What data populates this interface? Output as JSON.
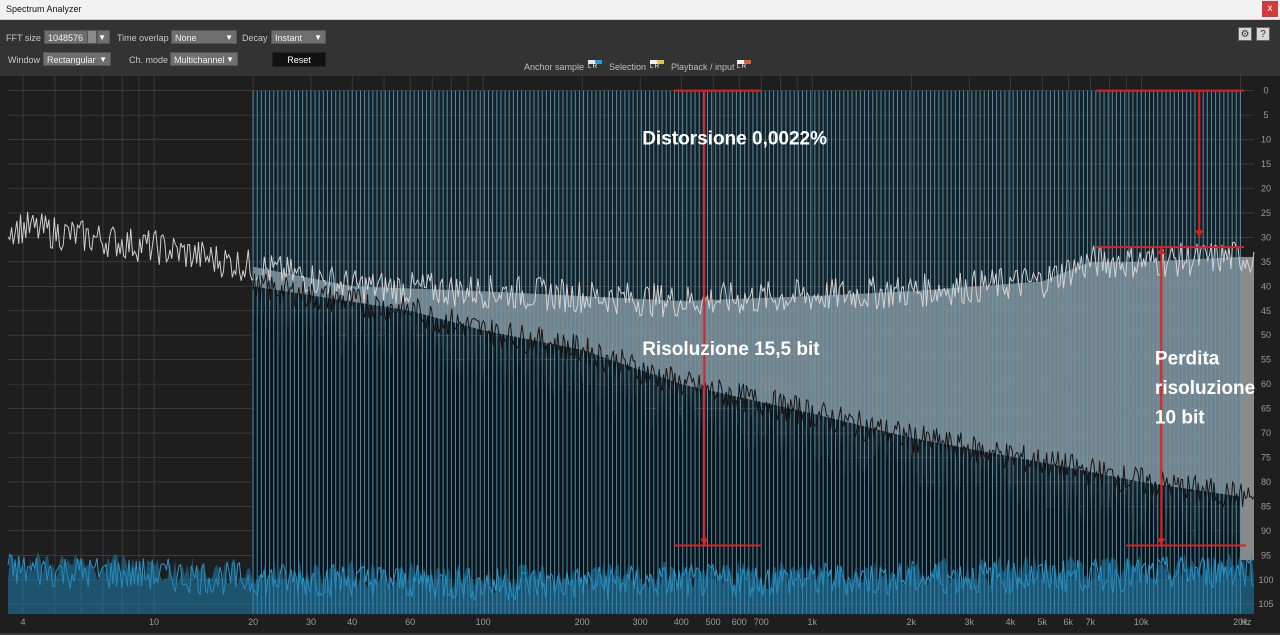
{
  "window": {
    "title": "Spectrum Analyzer",
    "close": "x"
  },
  "toolbar": {
    "fft_size_label": "FFT size",
    "fft_size_value": "1048576",
    "time_overlap_label": "Time overlap",
    "time_overlap_value": "None",
    "decay_label": "Decay",
    "decay_value": "Instant",
    "window_label": "Window",
    "window_value": "Rectangular",
    "ch_mode_label": "Ch. mode",
    "ch_mode_value": "Multichannel",
    "reset_label": "Reset",
    "legend_anchor": "Anchor sample",
    "legend_selection": "Selection",
    "legend_playback": "Playback / input",
    "help_label": "?"
  },
  "chart_data": {
    "type": "line",
    "x_scale": "log",
    "x_unit": "Hz",
    "y_unit": "dB",
    "xlim": [
      3.6,
      22000
    ],
    "ylim": [
      -107,
      3
    ],
    "x_ticks": [
      {
        "value": 4,
        "label": "4"
      },
      {
        "value": 10,
        "label": "10"
      },
      {
        "value": 20,
        "label": "20"
      },
      {
        "value": 30,
        "label": "30"
      },
      {
        "value": 40,
        "label": "40"
      },
      {
        "value": 60,
        "label": "60"
      },
      {
        "value": 100,
        "label": "100"
      },
      {
        "value": 200,
        "label": "200"
      },
      {
        "value": 300,
        "label": "300"
      },
      {
        "value": 400,
        "label": "400"
      },
      {
        "value": 500,
        "label": "500"
      },
      {
        "value": 600,
        "label": "600"
      },
      {
        "value": 700,
        "label": "700"
      },
      {
        "value": 1000,
        "label": "1k"
      },
      {
        "value": 2000,
        "label": "2k"
      },
      {
        "value": 3000,
        "label": "3k"
      },
      {
        "value": 4000,
        "label": "4k"
      },
      {
        "value": 5000,
        "label": "5k"
      },
      {
        "value": 6000,
        "label": "6k"
      },
      {
        "value": 7000,
        "label": "7k"
      },
      {
        "value": 10000,
        "label": "10k"
      },
      {
        "value": 20000,
        "label": "20k"
      }
    ],
    "y_ticks": [
      0,
      -5,
      -10,
      -15,
      -20,
      -25,
      -30,
      -35,
      -40,
      -45,
      -50,
      -55,
      -60,
      -65,
      -70,
      -75,
      -80,
      -85,
      -90,
      -95,
      -100,
      -105
    ],
    "series": [
      {
        "color": "#d8d8d8",
        "x": [
          4,
          10,
          20,
          40,
          100,
          200,
          400,
          1000,
          2000,
          5000,
          7000,
          10000,
          20000,
          22000
        ],
        "y": [
          -28,
          -32,
          -36,
          -40,
          -41,
          -42,
          -43,
          -42,
          -41,
          -39,
          -35,
          -35,
          -34,
          -34
        ]
      },
      {
        "color": "#0f0f0f",
        "x": [
          20,
          60,
          100,
          200,
          400,
          1000,
          2000,
          5000,
          10000,
          20000
        ],
        "y": [
          -40,
          -45,
          -49,
          -53,
          -60,
          -66,
          -71,
          -76,
          -80,
          -83
        ]
      },
      {
        "color": "#2aa0d8",
        "x": [
          4,
          10,
          20,
          40,
          100,
          1000,
          10000,
          20000,
          22000
        ],
        "y": [
          -98,
          -99,
          -100,
          -100,
          -101,
          -100,
          -99,
          -98,
          -98
        ]
      }
    ],
    "comb_lines": {
      "color": "#41a8dc",
      "x_start": 20,
      "x_end": 20000,
      "top_db": 0,
      "count": 240
    },
    "annotations": [
      {
        "text": "Distorsione 0,0022%",
        "x": 1000,
        "y": -11
      },
      {
        "text": "Distorsione 2,5%",
        "x": 10000,
        "y": 4
      },
      {
        "text": "Risoluzione 15,5 bit",
        "x": 1000,
        "y": -54
      },
      {
        "text": "Perdita",
        "x": 11000,
        "y": -56
      },
      {
        "text": "risoluzione",
        "x": 11000,
        "y": -62
      },
      {
        "text": "10 bit",
        "x": 11000,
        "y": -68
      }
    ],
    "markers": [
      {
        "kind": "hline",
        "x1": 380,
        "x2": 700,
        "y": 0
      },
      {
        "kind": "hline",
        "x1": 380,
        "x2": 700,
        "y": -93
      },
      {
        "kind": "vline",
        "x": 470,
        "y1": 0,
        "y2": -93
      },
      {
        "kind": "hline",
        "x1": 7300,
        "x2": 20500,
        "y": 0
      },
      {
        "kind": "vline",
        "x": 15000,
        "y1": 0,
        "y2": -30
      },
      {
        "kind": "hline",
        "x1": 7300,
        "x2": 20500,
        "y": -32
      },
      {
        "kind": "vline",
        "x": 11500,
        "y1": -32,
        "y2": -93
      },
      {
        "kind": "hline",
        "x1": 9000,
        "x2": 20800,
        "y": -93
      }
    ],
    "colors": {
      "marker": "#e02020",
      "annotation": "#ffffff",
      "fill_gray": "#8a8a8a",
      "grid": "#4a4a4a"
    }
  }
}
